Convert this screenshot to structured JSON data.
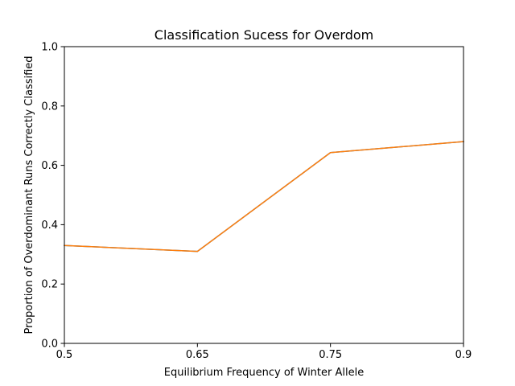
{
  "chart_data": {
    "type": "line",
    "title": "Classification Sucess for Overdom",
    "xlabel": "Equilibrium Frequency of Winter Allele",
    "ylabel": "Proportion of Overdominant Runs Correctly Classified",
    "categories": [
      "0.5",
      "0.65",
      "0.75",
      "0.9"
    ],
    "x_ticks": [
      "0.5",
      "0.65",
      "0.75",
      "0.9"
    ],
    "y_ticks": [
      "0.0",
      "0.2",
      "0.4",
      "0.6",
      "0.8",
      "1.0"
    ],
    "ylim": [
      0,
      1
    ],
    "grid": false,
    "series": [
      {
        "color": "#1f77b4",
        "values": [
          0.33,
          0.31,
          0.643,
          0.68
        ]
      },
      {
        "color": "#ff7f0e",
        "values": [
          0.33,
          0.31,
          0.643,
          0.68
        ]
      }
    ]
  }
}
